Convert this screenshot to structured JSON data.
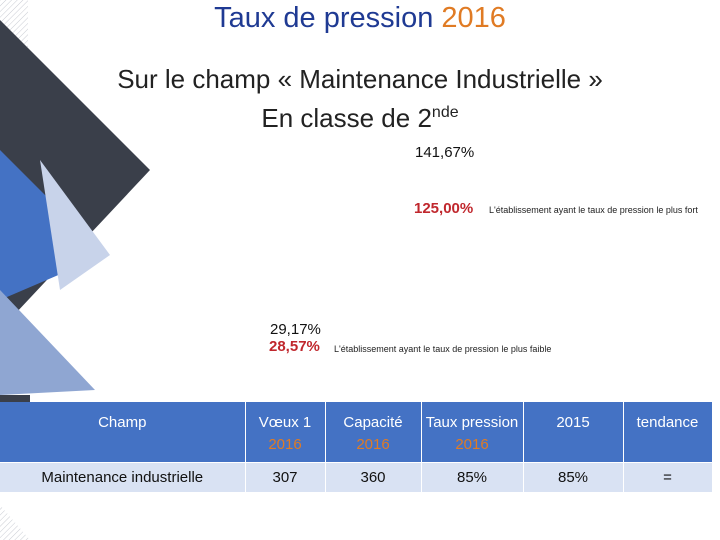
{
  "title": {
    "main": "Taux de pression",
    "year": "2016"
  },
  "subtitle": {
    "line1": "Sur le champ « Maintenance Industrielle »",
    "line2_prefix": "En classe de 2",
    "line2_sup": "nde"
  },
  "stats": {
    "value_top": "141,67%",
    "value_max": "125,00%",
    "note_max": "L'établissement ayant le taux de pression le plus fort",
    "value_mid": "29,17%",
    "value_min": "28,57%",
    "note_min": "L'établissement ayant le taux de pression le plus faible"
  },
  "table": {
    "headers": [
      {
        "label": "Champ",
        "year": ""
      },
      {
        "label": "Vœux 1",
        "year": "2016"
      },
      {
        "label": "Capacité",
        "year": "2016"
      },
      {
        "label": "Taux pression",
        "year": "2016"
      },
      {
        "label": "2015",
        "year": ""
      },
      {
        "label": "tendance",
        "year": ""
      }
    ],
    "rows": [
      [
        "Maintenance industrielle",
        "307",
        "360",
        "85%",
        "85%",
        "="
      ]
    ]
  },
  "colors": {
    "title": "#1f3a93",
    "accent": "#e07b24",
    "highlight": "#c0272d",
    "header_bg": "#4472c4",
    "row_bg": "#d9e2f3"
  }
}
